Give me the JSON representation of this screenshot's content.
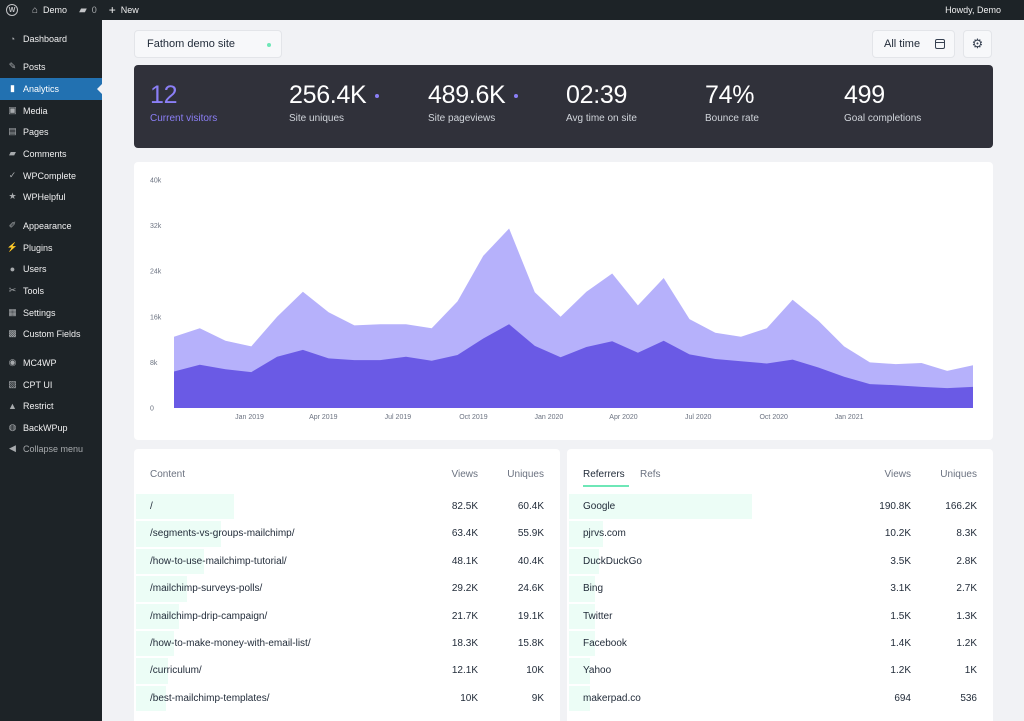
{
  "adminbar": {
    "site_name": "Demo",
    "comments_count": "0",
    "new_label": "New",
    "howdy": "Howdy, Demo"
  },
  "sidebar": {
    "items": [
      {
        "label": "Dashboard",
        "icon": "dashboard-icon",
        "glyph": "◔",
        "active": false
      },
      {
        "label": "Posts",
        "icon": "pin-icon",
        "glyph": "✎",
        "active": false
      },
      {
        "label": "Analytics",
        "icon": "bar-chart-icon",
        "glyph": "▮",
        "active": true
      },
      {
        "label": "Media",
        "icon": "media-icon",
        "glyph": "▣",
        "active": false
      },
      {
        "label": "Pages",
        "icon": "pages-icon",
        "glyph": "▤",
        "active": false
      },
      {
        "label": "Comments",
        "icon": "comments-icon",
        "glyph": "▰",
        "active": false
      },
      {
        "label": "WPComplete",
        "icon": "check-icon",
        "glyph": "✓",
        "active": false
      },
      {
        "label": "WPHelpful",
        "icon": "star-icon",
        "glyph": "★",
        "active": false
      },
      {
        "label": "Appearance",
        "icon": "brush-icon",
        "glyph": "✐",
        "active": false
      },
      {
        "label": "Plugins",
        "icon": "plug-icon",
        "glyph": "⚡",
        "active": false
      },
      {
        "label": "Users",
        "icon": "user-icon",
        "glyph": "●",
        "active": false
      },
      {
        "label": "Tools",
        "icon": "wrench-icon",
        "glyph": "✂",
        "active": false
      },
      {
        "label": "Settings",
        "icon": "settings-icon",
        "glyph": "▦",
        "active": false
      },
      {
        "label": "Custom Fields",
        "icon": "grid-icon",
        "glyph": "▩",
        "active": false
      },
      {
        "label": "MC4WP",
        "icon": "mc4wp-icon",
        "glyph": "◉",
        "active": false
      },
      {
        "label": "CPT UI",
        "icon": "cptui-icon",
        "glyph": "▧",
        "active": false
      },
      {
        "label": "Restrict",
        "icon": "lock-icon",
        "glyph": "▲",
        "active": false
      },
      {
        "label": "BackWPup",
        "icon": "backup-icon",
        "glyph": "◍",
        "active": false
      },
      {
        "label": "Collapse menu",
        "icon": "collapse-icon",
        "glyph": "◀",
        "active": false
      }
    ]
  },
  "site_select": {
    "value": "Fathom demo site"
  },
  "range_select": {
    "value": "All time"
  },
  "stats": [
    {
      "value": "12",
      "label": "Current visitors"
    },
    {
      "value": "256.4K",
      "label": "Site uniques"
    },
    {
      "value": "489.6K",
      "label": "Site pageviews"
    },
    {
      "value": "02:39",
      "label": "Avg time on site"
    },
    {
      "value": "74%",
      "label": "Bounce rate"
    },
    {
      "value": "499",
      "label": "Goal completions"
    }
  ],
  "chart_data": {
    "type": "area",
    "x_start": "2018-10-01",
    "x_end": "2021-06-01",
    "x_tick_labels": [
      "Jan 2019",
      "Apr 2019",
      "Jul 2019",
      "Oct 2019",
      "Jan 2020",
      "Apr 2020",
      "Jul 2020",
      "Oct 2020",
      "Jan 2021"
    ],
    "y_tick_labels": [
      "0",
      "8k",
      "16k",
      "24k",
      "32k",
      "40k"
    ],
    "ylim": [
      0,
      40000
    ],
    "colors": {
      "pageviews": "#b6b1fb",
      "uniques": "#6a5ae5"
    },
    "series": [
      {
        "values": [
          12500,
          14000,
          11800,
          10800,
          16000,
          20400,
          16800,
          14500,
          14700,
          14700,
          14000,
          18700,
          26700,
          31500,
          20300,
          16000,
          20400,
          23600,
          18000,
          22800,
          15600,
          13200,
          12500,
          14000,
          19000,
          15300,
          10800,
          8000,
          7700,
          7900,
          6500,
          7500
        ]
      },
      {
        "values": [
          6400,
          7600,
          6800,
          6300,
          9000,
          10200,
          8700,
          8400,
          8400,
          9000,
          8300,
          9300,
          12200,
          14700,
          10900,
          8900,
          10700,
          11700,
          9700,
          11800,
          9400,
          8600,
          8200,
          7800,
          8500,
          7100,
          5500,
          4200,
          4000,
          3700,
          3500,
          3700
        ]
      }
    ]
  },
  "content_table": {
    "header": {
      "label": "Content",
      "views": "Views",
      "uniques": "Uniques"
    },
    "rows": [
      {
        "label": "/",
        "views": "82.5K",
        "uniques": "60.4K",
        "share": 0.23
      },
      {
        "label": "/segments-vs-groups-mailchimp/",
        "views": "63.4K",
        "uniques": "55.9K",
        "share": 0.2
      },
      {
        "label": "/how-to-use-mailchimp-tutorial/",
        "views": "48.1K",
        "uniques": "40.4K",
        "share": 0.16
      },
      {
        "label": "/mailchimp-surveys-polls/",
        "views": "29.2K",
        "uniques": "24.6K",
        "share": 0.12
      },
      {
        "label": "/mailchimp-drip-campaign/",
        "views": "21.7K",
        "uniques": "19.1K",
        "share": 0.1
      },
      {
        "label": "/how-to-make-money-with-email-list/",
        "views": "18.3K",
        "uniques": "15.8K",
        "share": 0.09
      },
      {
        "label": "/curriculum/",
        "views": "12.1K",
        "uniques": "10K",
        "share": 0.075
      },
      {
        "label": "/best-mailchimp-templates/",
        "views": "10K",
        "uniques": "9K",
        "share": 0.07
      }
    ]
  },
  "referrers_table": {
    "header": {
      "tab_referrers": "Referrers",
      "tab_refs": "Refs",
      "views": "Views",
      "uniques": "Uniques"
    },
    "rows": [
      {
        "label": "Google",
        "views": "190.8K",
        "uniques": "166.2K",
        "share": 0.43
      },
      {
        "label": "pjrvs.com",
        "views": "10.2K",
        "uniques": "8.3K",
        "share": 0.08
      },
      {
        "label": "DuckDuckGo",
        "views": "3.5K",
        "uniques": "2.8K",
        "share": 0.07
      },
      {
        "label": "Bing",
        "views": "3.1K",
        "uniques": "2.7K",
        "share": 0.06
      },
      {
        "label": "Twitter",
        "views": "1.5K",
        "uniques": "1.3K",
        "share": 0.06
      },
      {
        "label": "Facebook",
        "views": "1.4K",
        "uniques": "1.2K",
        "share": 0.06
      },
      {
        "label": "Yahoo",
        "views": "1.2K",
        "uniques": "1K",
        "share": 0.05
      },
      {
        "label": "makerpad.co",
        "views": "694",
        "uniques": "536",
        "share": 0.05
      }
    ]
  }
}
